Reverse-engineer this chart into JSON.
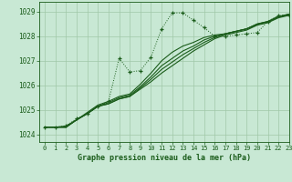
{
  "title": "Graphe pression niveau de la mer (hPa)",
  "background_color": "#c8e8d4",
  "plot_bg_color": "#c8e8d4",
  "grid_color": "#a0c8a8",
  "line_color": "#1a5c1a",
  "xlim": [
    -0.5,
    23
  ],
  "ylim": [
    1023.7,
    1029.4
  ],
  "yticks": [
    1024,
    1025,
    1026,
    1027,
    1028,
    1029
  ],
  "xticks": [
    0,
    1,
    2,
    3,
    4,
    5,
    6,
    7,
    8,
    9,
    10,
    11,
    12,
    13,
    14,
    15,
    16,
    17,
    18,
    19,
    20,
    21,
    22,
    23
  ],
  "solid_series": [
    [
      1024.3,
      1024.3,
      1024.3,
      1024.6,
      1024.85,
      1025.15,
      1025.25,
      1025.45,
      1025.55,
      1025.85,
      1026.15,
      1026.5,
      1026.8,
      1027.1,
      1027.4,
      1027.65,
      1027.9,
      1028.05,
      1028.15,
      1028.25,
      1028.45,
      1028.55,
      1028.75,
      1028.85
    ],
    [
      1024.3,
      1024.3,
      1024.3,
      1024.6,
      1024.85,
      1025.15,
      1025.25,
      1025.45,
      1025.55,
      1025.9,
      1026.25,
      1026.65,
      1026.95,
      1027.25,
      1027.5,
      1027.75,
      1027.95,
      1028.1,
      1028.2,
      1028.3,
      1028.48,
      1028.58,
      1028.78,
      1028.88
    ],
    [
      1024.3,
      1024.3,
      1024.3,
      1024.6,
      1024.85,
      1025.15,
      1025.3,
      1025.5,
      1025.6,
      1025.95,
      1026.35,
      1026.8,
      1027.1,
      1027.4,
      1027.6,
      1027.85,
      1028.0,
      1028.1,
      1028.2,
      1028.3,
      1028.5,
      1028.6,
      1028.8,
      1028.9
    ],
    [
      1024.3,
      1024.3,
      1024.35,
      1024.6,
      1024.9,
      1025.2,
      1025.35,
      1025.55,
      1025.65,
      1026.05,
      1026.5,
      1027.0,
      1027.35,
      1027.6,
      1027.75,
      1027.95,
      1028.05,
      1028.1,
      1028.2,
      1028.3,
      1028.5,
      1028.6,
      1028.8,
      1028.9
    ]
  ],
  "dotted_series_x": [
    0,
    1,
    2,
    3,
    4,
    5,
    6,
    7,
    8,
    9,
    10,
    11,
    12,
    13,
    14,
    15,
    16,
    17,
    18,
    19,
    20,
    21,
    22,
    23
  ],
  "dotted_series_y": [
    1024.3,
    1024.3,
    1024.35,
    1024.65,
    1024.85,
    1025.15,
    1025.35,
    1027.1,
    1026.55,
    1026.6,
    1027.15,
    1028.3,
    1028.95,
    1028.95,
    1028.65,
    1028.35,
    1028.0,
    1028.0,
    1028.05,
    1028.1,
    1028.15,
    1028.6,
    1028.85,
    1028.85
  ]
}
